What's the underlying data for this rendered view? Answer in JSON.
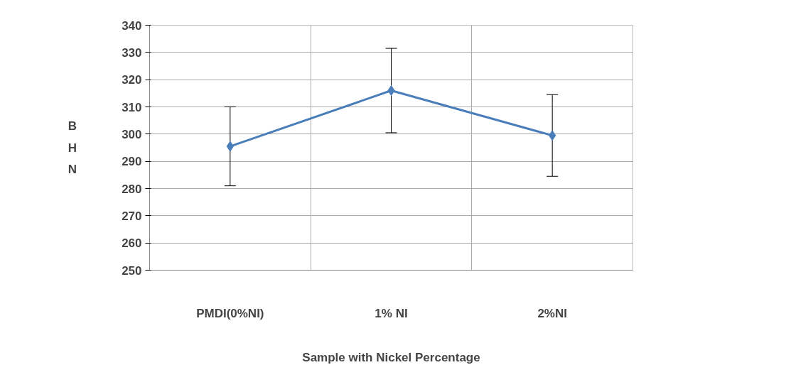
{
  "chart_data": {
    "type": "line",
    "xlabel": "Sample with Nickel Percentage",
    "ylabel": "BHN",
    "categories": [
      "PMDI(0%NI)",
      "1% NI",
      "2%NI"
    ],
    "series": [
      {
        "color": "#4a7ebb",
        "values": [
          295.5,
          316,
          299.5
        ],
        "errors": [
          14.5,
          15.5,
          15
        ]
      }
    ],
    "ylim": [
      250,
      340
    ],
    "yticks": [
      250,
      260,
      270,
      280,
      290,
      300,
      310,
      320,
      330,
      340
    ],
    "grid": true,
    "marker": "diamond",
    "line_style": "solid"
  }
}
